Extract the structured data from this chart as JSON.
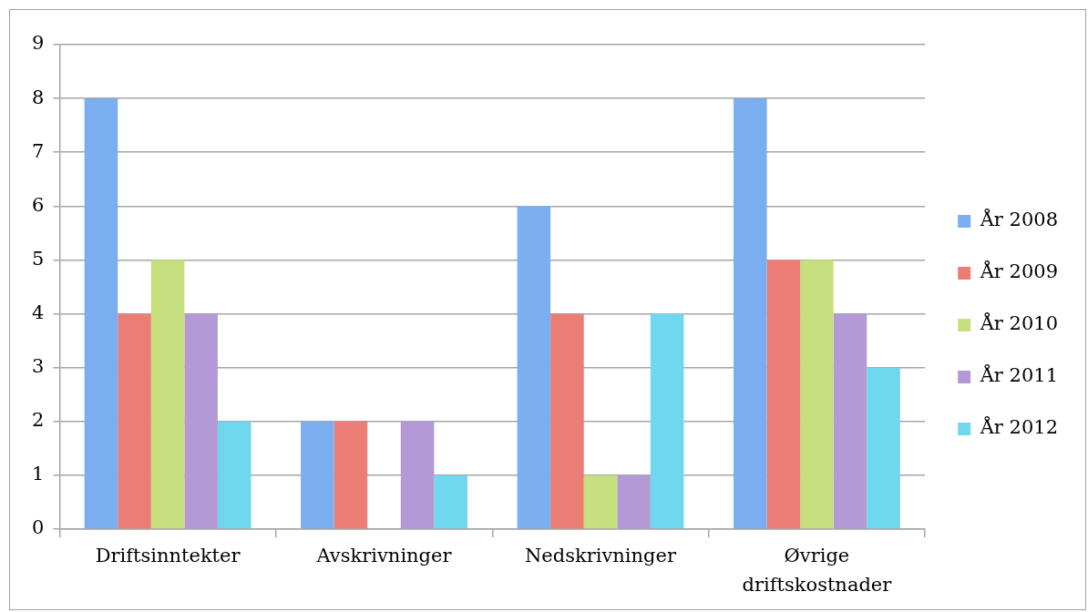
{
  "chart_data": {
    "type": "bar",
    "categories": [
      "Driftsinntekter",
      "Avskrivninger",
      "Nedskrivninger",
      "Øvrige driftskostnader"
    ],
    "series": [
      {
        "name": "År 2008",
        "color": "#7aaef0",
        "values": [
          8,
          2,
          6,
          8
        ]
      },
      {
        "name": "År 2009",
        "color": "#ec7d75",
        "values": [
          4,
          2,
          4,
          5
        ]
      },
      {
        "name": "År 2010",
        "color": "#c6e07f",
        "values": [
          5,
          0,
          1,
          5
        ]
      },
      {
        "name": "År 2011",
        "color": "#b39ad6",
        "values": [
          4,
          2,
          1,
          4
        ]
      },
      {
        "name": "År 2012",
        "color": "#70d8ee",
        "values": [
          2,
          1,
          4,
          3
        ]
      }
    ],
    "ylim": [
      0,
      9
    ],
    "yticks": [
      0,
      1,
      2,
      3,
      4,
      5,
      6,
      7,
      8,
      9
    ],
    "grid": "y",
    "legend": "right"
  }
}
